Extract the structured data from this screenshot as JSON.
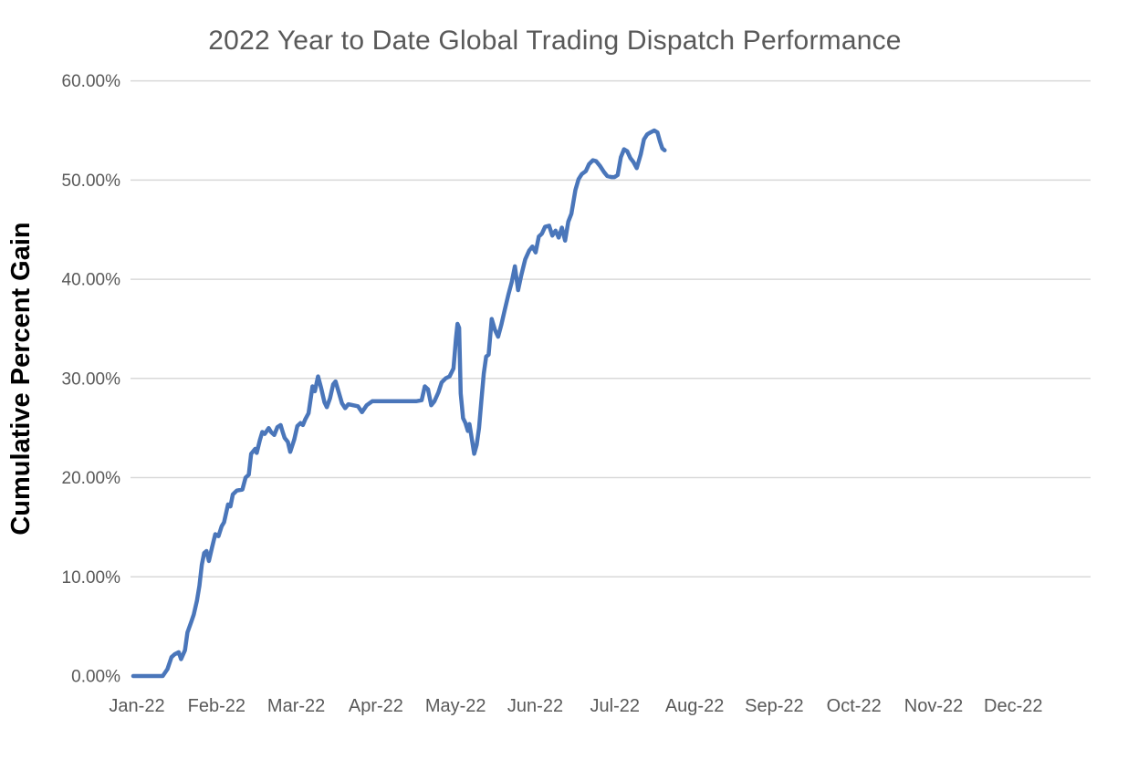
{
  "chart": {
    "background_color": "#ffffff",
    "title_color": "#595959",
    "tick_label_color": "#595959",
    "gridline_color": "#d9d9d9",
    "y_axis_title_color": "#000000"
  },
  "chart_data": {
    "type": "line",
    "title": "2022 Year to Date Global Trading Dispatch Performance",
    "xlabel": "",
    "ylabel": "Cumulative Percent Gain",
    "legend": "none",
    "grid": "horizontal, at 10%-60% only (no 0% line)",
    "ylim": [
      0,
      60
    ],
    "y_tick_labels": [
      "0.00%",
      "10.00%",
      "20.00%",
      "30.00%",
      "40.00%",
      "50.00%",
      "60.00%"
    ],
    "y_tick_values": [
      0,
      10,
      20,
      30,
      40,
      50,
      60
    ],
    "x_tick_labels": [
      "Jan-22",
      "Feb-22",
      "Mar-22",
      "Apr-22",
      "May-22",
      "Jun-22",
      "Jul-22",
      "Aug-22",
      "Sep-22",
      "Oct-22",
      "Nov-22",
      "Dec-22"
    ],
    "xlim_months": [
      0,
      12
    ],
    "line_color": "#4a76ba",
    "line_width": 4.5,
    "series": [
      {
        "name": "Cumulative Percent Gain",
        "x_unit": "months since Jan-22 (0 = Jan 1, 1 = Feb 1, ...)",
        "y_unit": "percent",
        "points": [
          [
            0.0,
            0.0
          ],
          [
            0.1,
            0.0
          ],
          [
            0.2,
            0.0
          ],
          [
            0.3,
            0.0
          ],
          [
            0.37,
            0.0
          ],
          [
            0.43,
            0.7
          ],
          [
            0.48,
            1.9
          ],
          [
            0.52,
            2.2
          ],
          [
            0.57,
            2.4
          ],
          [
            0.6,
            1.7
          ],
          [
            0.65,
            2.6
          ],
          [
            0.68,
            4.4
          ],
          [
            0.73,
            5.5
          ],
          [
            0.76,
            6.2
          ],
          [
            0.8,
            7.6
          ],
          [
            0.83,
            9.1
          ],
          [
            0.86,
            11.2
          ],
          [
            0.89,
            12.4
          ],
          [
            0.92,
            12.6
          ],
          [
            0.95,
            11.6
          ],
          [
            0.99,
            13.0
          ],
          [
            1.03,
            14.3
          ],
          [
            1.07,
            14.1
          ],
          [
            1.11,
            15.1
          ],
          [
            1.14,
            15.5
          ],
          [
            1.19,
            17.3
          ],
          [
            1.22,
            17.1
          ],
          [
            1.25,
            18.3
          ],
          [
            1.3,
            18.7
          ],
          [
            1.37,
            18.8
          ],
          [
            1.41,
            20.0
          ],
          [
            1.45,
            20.3
          ],
          [
            1.48,
            22.4
          ],
          [
            1.53,
            22.9
          ],
          [
            1.55,
            22.5
          ],
          [
            1.59,
            23.8
          ],
          [
            1.62,
            24.6
          ],
          [
            1.65,
            24.4
          ],
          [
            1.7,
            25.0
          ],
          [
            1.73,
            24.6
          ],
          [
            1.77,
            24.3
          ],
          [
            1.81,
            25.1
          ],
          [
            1.85,
            25.3
          ],
          [
            1.88,
            24.5
          ],
          [
            1.9,
            24.0
          ],
          [
            1.94,
            23.6
          ],
          [
            1.97,
            22.6
          ],
          [
            2.02,
            23.8
          ],
          [
            2.06,
            25.2
          ],
          [
            2.1,
            25.5
          ],
          [
            2.13,
            25.3
          ],
          [
            2.16,
            25.9
          ],
          [
            2.2,
            26.5
          ],
          [
            2.25,
            29.2
          ],
          [
            2.28,
            28.7
          ],
          [
            2.32,
            30.2
          ],
          [
            2.36,
            29.0
          ],
          [
            2.4,
            27.6
          ],
          [
            2.43,
            27.1
          ],
          [
            2.47,
            28.0
          ],
          [
            2.51,
            29.4
          ],
          [
            2.54,
            29.7
          ],
          [
            2.58,
            28.6
          ],
          [
            2.62,
            27.5
          ],
          [
            2.66,
            27.0
          ],
          [
            2.7,
            27.4
          ],
          [
            2.76,
            27.3
          ],
          [
            2.82,
            27.2
          ],
          [
            2.87,
            26.6
          ],
          [
            2.93,
            27.3
          ],
          [
            3.0,
            27.7
          ],
          [
            3.15,
            27.7
          ],
          [
            3.3,
            27.7
          ],
          [
            3.45,
            27.7
          ],
          [
            3.55,
            27.7
          ],
          [
            3.62,
            27.8
          ],
          [
            3.66,
            29.2
          ],
          [
            3.7,
            28.9
          ],
          [
            3.74,
            27.3
          ],
          [
            3.78,
            27.7
          ],
          [
            3.83,
            28.6
          ],
          [
            3.87,
            29.6
          ],
          [
            3.92,
            30.0
          ],
          [
            3.97,
            30.2
          ],
          [
            4.02,
            31.0
          ],
          [
            4.05,
            34.0
          ],
          [
            4.07,
            35.5
          ],
          [
            4.09,
            35.1
          ],
          [
            4.11,
            28.5
          ],
          [
            4.14,
            26.0
          ],
          [
            4.17,
            25.5
          ],
          [
            4.2,
            24.7
          ],
          [
            4.22,
            25.4
          ],
          [
            4.25,
            23.9
          ],
          [
            4.28,
            22.4
          ],
          [
            4.31,
            23.3
          ],
          [
            4.34,
            25.0
          ],
          [
            4.37,
            27.8
          ],
          [
            4.4,
            30.5
          ],
          [
            4.43,
            32.2
          ],
          [
            4.46,
            32.4
          ],
          [
            4.5,
            36.0
          ],
          [
            4.54,
            34.9
          ],
          [
            4.58,
            34.2
          ],
          [
            4.62,
            35.4
          ],
          [
            4.66,
            36.8
          ],
          [
            4.71,
            38.5
          ],
          [
            4.75,
            39.7
          ],
          [
            4.79,
            41.3
          ],
          [
            4.83,
            38.9
          ],
          [
            4.87,
            40.4
          ],
          [
            4.92,
            42.0
          ],
          [
            4.97,
            42.9
          ],
          [
            5.01,
            43.3
          ],
          [
            5.05,
            42.7
          ],
          [
            5.09,
            44.3
          ],
          [
            5.13,
            44.6
          ],
          [
            5.17,
            45.3
          ],
          [
            5.22,
            45.4
          ],
          [
            5.26,
            44.4
          ],
          [
            5.3,
            44.9
          ],
          [
            5.34,
            44.2
          ],
          [
            5.38,
            45.2
          ],
          [
            5.42,
            43.9
          ],
          [
            5.46,
            45.8
          ],
          [
            5.5,
            46.6
          ],
          [
            5.55,
            49.0
          ],
          [
            5.59,
            50.1
          ],
          [
            5.63,
            50.6
          ],
          [
            5.68,
            50.9
          ],
          [
            5.72,
            51.6
          ],
          [
            5.77,
            52.0
          ],
          [
            5.81,
            51.9
          ],
          [
            5.86,
            51.4
          ],
          [
            5.91,
            50.8
          ],
          [
            5.95,
            50.4
          ],
          [
            6.0,
            50.3
          ],
          [
            6.04,
            50.3
          ],
          [
            6.08,
            50.5
          ],
          [
            6.12,
            52.3
          ],
          [
            6.16,
            53.1
          ],
          [
            6.2,
            52.9
          ],
          [
            6.24,
            52.2
          ],
          [
            6.28,
            51.8
          ],
          [
            6.32,
            51.2
          ],
          [
            6.37,
            52.6
          ],
          [
            6.41,
            54.1
          ],
          [
            6.45,
            54.6
          ],
          [
            6.49,
            54.8
          ],
          [
            6.54,
            55.0
          ],
          [
            6.58,
            54.8
          ],
          [
            6.61,
            53.9
          ],
          [
            6.64,
            53.2
          ],
          [
            6.67,
            53.0
          ]
        ]
      }
    ]
  }
}
